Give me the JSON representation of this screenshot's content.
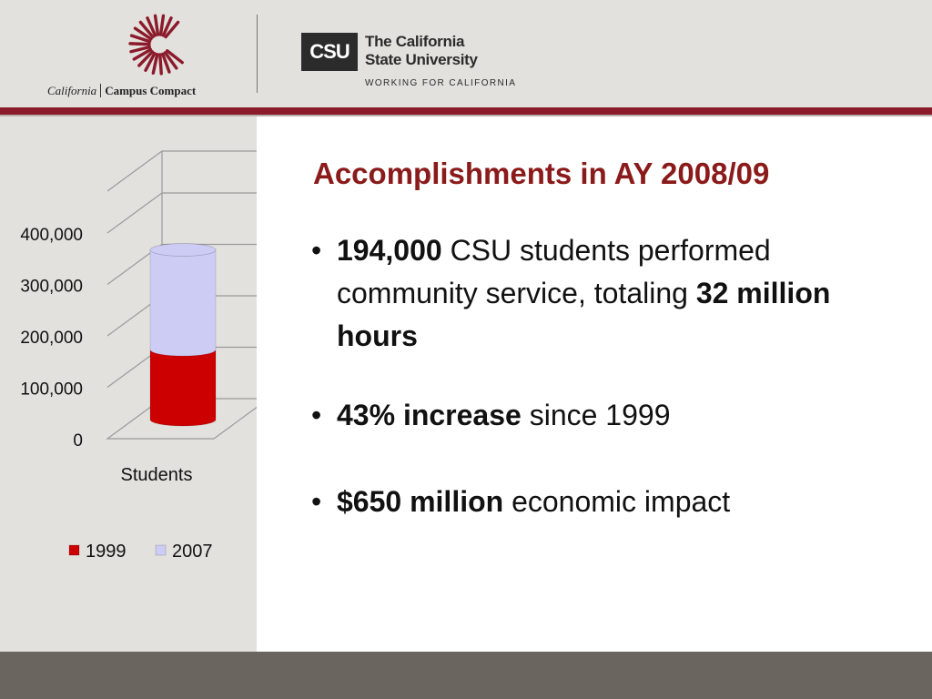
{
  "header": {
    "left_logo": {
      "icon": "campus-compact-sunburst-icon",
      "state_text": "California",
      "org_text": "Campus Compact"
    },
    "right_logo": {
      "abbr": "CSU",
      "name_line1": "The California",
      "name_line2": "State University",
      "tagline": "WORKING FOR CALIFORNIA"
    },
    "colors": {
      "band": "#e3e1dd",
      "rule": "#8b1a2b",
      "footer": "#6a655f"
    }
  },
  "slide": {
    "title": "Accomplishments in AY 2008/09",
    "bullets": [
      {
        "b1_strong": "194,000",
        "b1_text1": " CSU students performed community service, totaling ",
        "b1_strong2": "32 million hours"
      },
      {
        "b2_strong": "43% increase",
        "b2_text": " since 1999"
      },
      {
        "b3_strong": "$650 million",
        "b3_text": " economic impact"
      }
    ]
  },
  "chart_data": {
    "type": "bar",
    "stacked": true,
    "three_d": true,
    "categories": [
      "Students"
    ],
    "series": [
      {
        "name": "1999",
        "values": [
          136000
        ],
        "color": "#cc0000"
      },
      {
        "name": "2007",
        "values": [
          194000
        ],
        "color": "#ccccf5"
      }
    ],
    "yticks": [
      "400,000",
      "300,000",
      "200,000",
      "100,000",
      "0"
    ],
    "ylim": [
      0,
      400000
    ],
    "legend_position": "bottom",
    "grid": true
  }
}
